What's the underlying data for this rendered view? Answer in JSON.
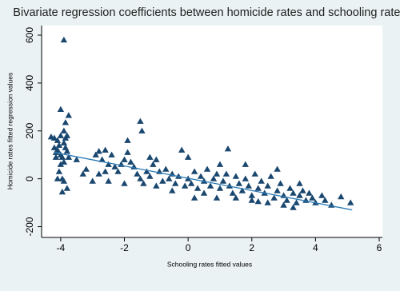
{
  "chart_data": {
    "type": "scatter",
    "title": "Bivariate regression coefficients between homicide rates and schooling rates",
    "x_label": "Schooling rates fitted values",
    "y_label": "Homicide rates fitted regression values",
    "xlim": [
      -4.6,
      6.1
    ],
    "ylim": [
      -245,
      640
    ],
    "xticks": [
      -4,
      -2,
      0,
      2,
      4,
      6
    ],
    "yticks": [
      -200,
      0,
      200,
      400,
      600
    ],
    "grid": false,
    "series": [
      {
        "type": "scatter",
        "marker": "triangle",
        "color": "#1a476f",
        "x": [
          -4.3,
          -4.2,
          -4.1,
          -4.05,
          -4.1,
          -4.0,
          -3.95,
          -4.15,
          -4.0,
          -3.9,
          -3.75,
          -3.85,
          -3.9,
          -3.8,
          -3.85,
          -4.0,
          -4.05,
          -3.95,
          -3.9,
          -4.1,
          -3.95,
          -3.8,
          -4.2,
          -3.85,
          -3.9,
          -4.0,
          -3.8,
          -3.75,
          -4.15,
          -3.9,
          -3.5,
          -3.3,
          -3.2,
          -2.9,
          -2.8,
          -2.7,
          -2.6,
          -2.5,
          -2.6,
          -2.8,
          -2.4,
          -2.3,
          -2.2,
          -2.1,
          -2.0,
          -1.9,
          -1.9,
          -1.8,
          -1.7,
          -1.6,
          -1.5,
          -1.45,
          -1.5,
          -1.4,
          -1.3,
          -1.2,
          -1.1,
          -1.0,
          -0.9,
          -0.8,
          -0.7,
          -0.6,
          -0.5,
          -0.4,
          -0.3,
          -0.2,
          -0.1,
          0,
          0.1,
          0.2,
          0.3,
          0.4,
          0.5,
          0.6,
          0.7,
          0.8,
          0.9,
          1.0,
          1.1,
          1.2,
          1.25,
          1.3,
          1.4,
          1.5,
          1.6,
          1.7,
          1.8,
          1.9,
          2.0,
          2.1,
          2.2,
          2.3,
          2.4,
          2.5,
          2.6,
          2.7,
          2.8,
          2.9,
          3.0,
          3.1,
          3.2,
          3.3,
          3.4,
          3.5,
          3.6,
          3.7,
          3.8,
          3.9,
          4.0,
          4.2,
          4.5,
          4.8,
          5.1,
          -2.5,
          -2.0,
          -1.0,
          -0.5,
          0.2,
          0.5,
          1.0,
          1.5,
          2.0,
          2.5,
          3.0,
          1.8,
          2.8,
          -3.0,
          -1.2,
          0.0,
          0.9,
          3.5,
          4.3,
          2.2,
          3.3
        ],
        "values": [
          175,
          170,
          160,
          140,
          120,
          100,
          90,
          110,
          290,
          580,
          265,
          235,
          200,
          180,
          170,
          60,
          30,
          0,
          -10,
          0,
          -55,
          -40,
          130,
          130,
          150,
          180,
          115,
          90,
          90,
          70,
          80,
          20,
          40,
          100,
          115,
          80,
          120,
          60,
          30,
          20,
          100,
          50,
          30,
          60,
          80,
          110,
          160,
          70,
          50,
          20,
          240,
          200,
          0,
          -20,
          30,
          10,
          60,
          80,
          30,
          -10,
          40,
          0,
          20,
          -20,
          10,
          120,
          -30,
          0,
          -20,
          30,
          -40,
          10,
          -10,
          40,
          -30,
          0,
          20,
          -40,
          -10,
          20,
          125,
          -30,
          -60,
          10,
          -20,
          -50,
          0,
          -30,
          -70,
          20,
          -40,
          -10,
          -60,
          -30,
          10,
          -80,
          -50,
          -20,
          -70,
          -90,
          -40,
          -60,
          -100,
          -70,
          -50,
          -90,
          -60,
          -80,
          -100,
          -70,
          -110,
          -75,
          -100,
          -10,
          -20,
          -30,
          -50,
          -80,
          -60,
          60,
          -80,
          -90,
          -100,
          -110,
          60,
          40,
          -10,
          90,
          90,
          -80,
          -20,
          -90,
          -95,
          -120
        ]
      },
      {
        "type": "line",
        "color": "#2c7bb6",
        "x": [
          -4.2,
          5.15
        ],
        "values": [
          110,
          -130
        ]
      }
    ]
  }
}
